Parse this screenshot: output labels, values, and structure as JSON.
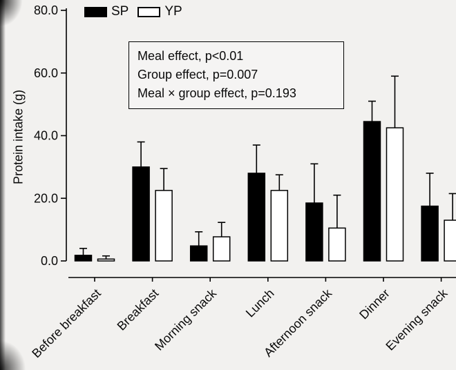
{
  "page": {
    "bg": "#f2f1ef"
  },
  "legend": {
    "items": [
      {
        "label": "SP",
        "fill": "#000000"
      },
      {
        "label": "YP",
        "fill": "#ffffff"
      }
    ]
  },
  "annotation_box": {
    "lines": [
      "Meal effect, p<0.01",
      "Group effect, p=0.007",
      "Meal × group effect, p=0.193"
    ]
  },
  "chart_data": {
    "type": "bar",
    "title": "",
    "ylabel": "Protein intake (g)",
    "xlabel": "",
    "ylim": [
      0,
      80
    ],
    "ytick_values": [
      0,
      20,
      40,
      60,
      80
    ],
    "ytick_labels": [
      "0.0",
      "20.0",
      "40.0",
      "60.0",
      "80.0"
    ],
    "categories": [
      "Before breakfast",
      "Breakfast",
      "Morning snack",
      "Lunch",
      "Afternoon snack",
      "Dinner",
      "Evening snack"
    ],
    "series": [
      {
        "name": "SP",
        "fill": "#000000",
        "values": [
          1.8,
          30.0,
          4.8,
          28.0,
          18.5,
          44.5,
          17.5
        ],
        "upper_errors": [
          2.2,
          8.0,
          4.5,
          9.0,
          12.5,
          6.5,
          10.5
        ]
      },
      {
        "name": "YP",
        "fill": "#ffffff",
        "values": [
          0.6,
          22.5,
          7.7,
          22.5,
          10.5,
          42.5,
          13.0
        ],
        "upper_errors": [
          1.0,
          7.0,
          4.6,
          5.0,
          10.5,
          16.5,
          8.5
        ]
      }
    ],
    "error_bars": "upper only, capped",
    "grid": false,
    "legend_position": "top",
    "annotations": [
      "Meal effect, p<0.01",
      "Group effect, p=0.007",
      "Meal × group effect, p=0.193"
    ]
  }
}
